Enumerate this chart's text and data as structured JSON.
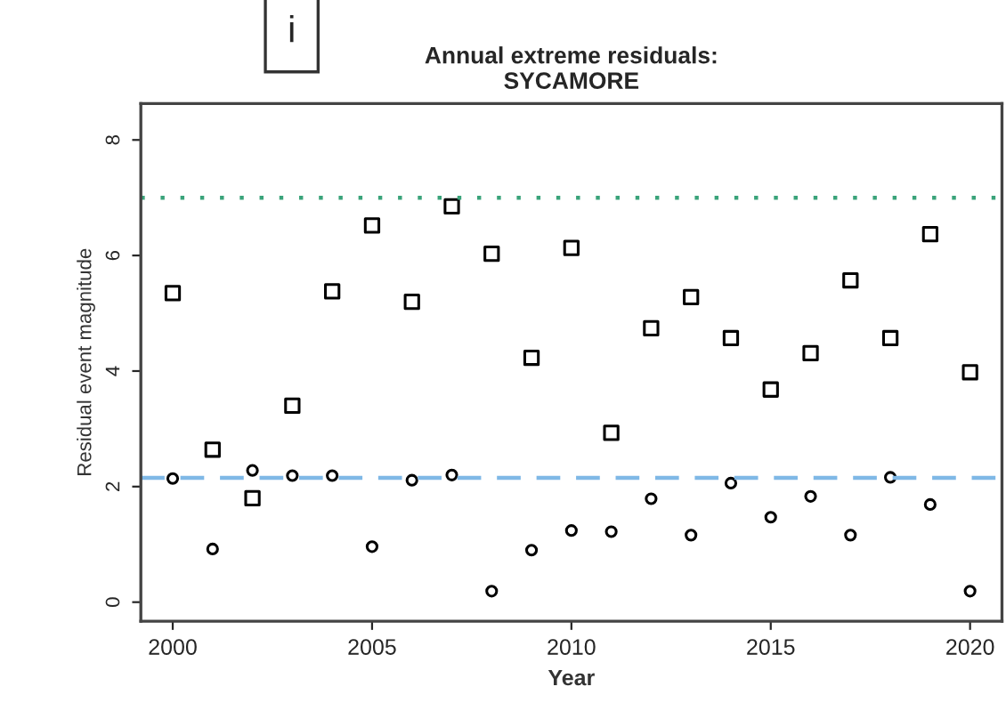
{
  "chart_data": {
    "type": "scatter",
    "title": "Annual extreme residuals:\nSYCAMORE",
    "xlabel": "Year",
    "ylabel": "Residual event magnitude",
    "annotations": [
      "i"
    ],
    "x": [
      2000,
      2001,
      2002,
      2003,
      2004,
      2005,
      2006,
      2007,
      2008,
      2009,
      2010,
      2011,
      2012,
      2013,
      2014,
      2015,
      2016,
      2017,
      2018,
      2019,
      2020
    ],
    "series": [
      {
        "color": "#000000",
        "marker": "square",
        "values": [
          5.35,
          2.64,
          1.8,
          3.4,
          5.38,
          6.52,
          5.2,
          6.85,
          6.03,
          4.23,
          6.13,
          2.93,
          4.74,
          5.28,
          4.57,
          3.68,
          4.31,
          5.57,
          4.57,
          6.37,
          3.98
        ]
      },
      {
        "color": "#000000",
        "marker": "circle",
        "values": [
          2.14,
          0.92,
          2.28,
          2.19,
          2.19,
          0.96,
          2.11,
          2.2,
          0.19,
          0.9,
          1.24,
          1.22,
          1.79,
          1.16,
          2.06,
          1.47,
          1.83,
          1.16,
          2.16,
          1.69,
          0.19
        ]
      }
    ],
    "ref_lines": [
      {
        "axis": "y",
        "value": 7.0,
        "color": "#3aa37a",
        "line_style": "dotted"
      },
      {
        "axis": "y",
        "value": 2.15,
        "color": "#7fb8e6",
        "line_style": "dashed"
      }
    ],
    "xlim": [
      1999.2,
      2020.8
    ],
    "ylim": [
      -0.33,
      8.63
    ],
    "xticks": [
      2000,
      2005,
      2010,
      2015,
      2020
    ],
    "yticks": [
      0,
      2,
      4,
      6,
      8
    ],
    "grid": false,
    "legend": false
  }
}
